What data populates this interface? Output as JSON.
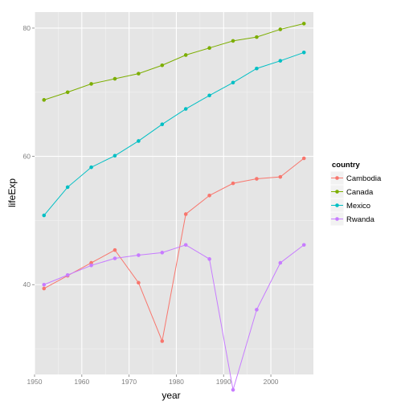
{
  "chart_data": {
    "type": "line",
    "title": "",
    "xlabel": "year",
    "ylabel": "lifeExp",
    "xlim": [
      1950,
      2009
    ],
    "ylim": [
      26,
      82.5
    ],
    "x_ticks": [
      1950,
      1960,
      1970,
      1980,
      1990,
      2000
    ],
    "y_ticks": [
      40,
      60,
      80
    ],
    "x_tick_labels": [
      "1950",
      "1960",
      "1970",
      "1980",
      "1990",
      "2000"
    ],
    "y_tick_labels": [
      "40",
      "60",
      "80"
    ],
    "grid": true,
    "legend_title": "country",
    "legend_position": "right",
    "x": [
      1952,
      1957,
      1962,
      1967,
      1972,
      1977,
      1982,
      1987,
      1992,
      1997,
      2002,
      2007
    ],
    "series": [
      {
        "name": "Cambodia",
        "color": "#F8766D",
        "values": [
          39.4,
          41.4,
          43.4,
          45.4,
          40.3,
          31.2,
          51.0,
          53.9,
          55.8,
          56.5,
          56.8,
          59.7
        ]
      },
      {
        "name": "Canada",
        "color": "#7CAE00",
        "values": [
          68.8,
          70.0,
          71.3,
          72.1,
          72.9,
          74.2,
          75.8,
          76.9,
          78.0,
          78.6,
          79.8,
          80.7
        ]
      },
      {
        "name": "Mexico",
        "color": "#00BFC4",
        "values": [
          50.8,
          55.2,
          58.3,
          60.1,
          62.4,
          65.0,
          67.4,
          69.5,
          71.5,
          73.7,
          74.9,
          76.2
        ]
      },
      {
        "name": "Rwanda",
        "color": "#C77CFF",
        "values": [
          40.0,
          41.5,
          43.0,
          44.1,
          44.6,
          45.0,
          46.2,
          44.0,
          23.6,
          36.1,
          43.4,
          46.2
        ]
      }
    ]
  }
}
